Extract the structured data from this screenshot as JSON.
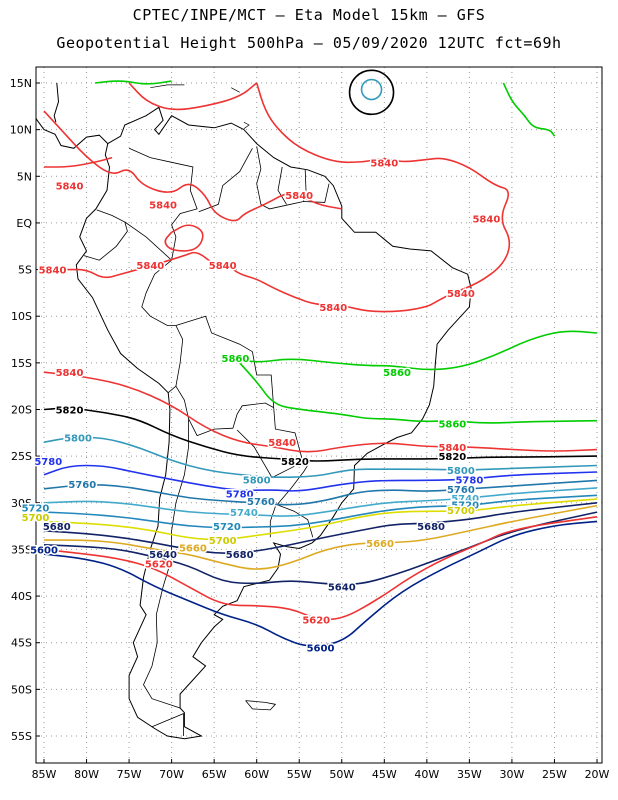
{
  "header": {
    "line1": "CPTEC/INPE/MCT –  Eta Model 15km – GFS",
    "line2": "Geopotential Height 500hPa – 05/09/2020 12UTC fct=69h"
  },
  "map": {
    "lat_ticks": [
      "15N",
      "10N",
      "5N",
      "EQ",
      "5S",
      "10S",
      "15S",
      "20S",
      "25S",
      "30S",
      "35S",
      "40S",
      "45S",
      "50S",
      "55S"
    ],
    "lon_ticks": [
      "85W",
      "80W",
      "75W",
      "70W",
      "65W",
      "60W",
      "55W",
      "50W",
      "45W",
      "40W",
      "35W",
      "30W",
      "25W",
      "20W"
    ],
    "grid": "dotted",
    "contour_colors": {
      "5860": "#00cc00",
      "5840": "#ee3333",
      "5820": "#000000",
      "5800": "#3399bb",
      "5780": "#2233ee",
      "5760": "#2277aa",
      "5740": "#44aacc",
      "5720": "#2288bb",
      "5700": "#eeee00",
      "5680": "#112266",
      "5660": "#ddaa22",
      "5640": "#112266",
      "5620": "#ee3333",
      "5600": "#002288"
    },
    "contour_labels": [
      {
        "text": "5840",
        "color": "#ee3333",
        "lon": -51,
        "lat": -9
      },
      {
        "text": "5840",
        "color": "#ee3333",
        "lon": -72.5,
        "lat": -4.5
      },
      {
        "text": "5840",
        "color": "#ee3333",
        "lon": -84,
        "lat": -5
      },
      {
        "text": "5840",
        "color": "#ee3333",
        "lon": -64,
        "lat": -4.5
      },
      {
        "text": "5840",
        "color": "#ee3333",
        "lon": -82,
        "lat": 4
      },
      {
        "text": "5840",
        "color": "#ee3333",
        "lon": -45,
        "lat": 6.5
      },
      {
        "text": "5840",
        "color": "#ee3333",
        "lon": -71,
        "lat": 2
      },
      {
        "text": "5840",
        "color": "#ee3333",
        "lon": -55,
        "lat": 3
      },
      {
        "text": "5840",
        "color": "#ee3333",
        "lon": -33,
        "lat": 0.5
      },
      {
        "text": "5840",
        "color": "#ee3333",
        "lon": -36,
        "lat": -7.5
      },
      {
        "text": "5840",
        "color": "#ee3333",
        "lon": -82,
        "lat": -16
      },
      {
        "text": "5840",
        "color": "#ee3333",
        "lon": -57,
        "lat": -23.5
      },
      {
        "text": "5840",
        "color": "#ee3333",
        "lon": -37,
        "lat": -24
      },
      {
        "text": "5860",
        "color": "#00cc00",
        "lon": -62.5,
        "lat": -14.5
      },
      {
        "text": "5860",
        "color": "#00cc00",
        "lon": -43.5,
        "lat": -16
      },
      {
        "text": "5860",
        "color": "#00cc00",
        "lon": -37,
        "lat": -21.5
      },
      {
        "text": "5820",
        "color": "#000000",
        "lon": -82,
        "lat": -20
      },
      {
        "text": "5820",
        "color": "#000000",
        "lon": -55.5,
        "lat": -25.5
      },
      {
        "text": "5820",
        "color": "#000000",
        "lon": -37,
        "lat": -25
      },
      {
        "text": "5800",
        "color": "#3399bb",
        "lon": -81,
        "lat": -23
      },
      {
        "text": "5800",
        "color": "#3399bb",
        "lon": -60,
        "lat": -27.5
      },
      {
        "text": "5800",
        "color": "#3399bb",
        "lon": -36,
        "lat": -26.5
      },
      {
        "text": "5780",
        "color": "#2233ee",
        "lon": -84.5,
        "lat": -25.5
      },
      {
        "text": "5780",
        "color": "#2233ee",
        "lon": -62,
        "lat": -29
      },
      {
        "text": "5780",
        "color": "#2233ee",
        "lon": -35,
        "lat": -27.5
      },
      {
        "text": "5760",
        "color": "#2277aa",
        "lon": -80.5,
        "lat": -28
      },
      {
        "text": "5760",
        "color": "#2277aa",
        "lon": -59.5,
        "lat": -29.8
      },
      {
        "text": "5760",
        "color": "#2277aa",
        "lon": -36,
        "lat": -28.5
      },
      {
        "text": "5740",
        "color": "#44aacc",
        "lon": -61.5,
        "lat": -31
      },
      {
        "text": "5740",
        "color": "#44aacc",
        "lon": -35.5,
        "lat": -29.5
      },
      {
        "text": "5720",
        "color": "#2288bb",
        "lon": -86,
        "lat": -30.5
      },
      {
        "text": "5720",
        "color": "#2288bb",
        "lon": -63.5,
        "lat": -32.5
      },
      {
        "text": "5720",
        "color": "#2288bb",
        "lon": -35.5,
        "lat": -30.2
      },
      {
        "text": "5700",
        "color": "#cccc00",
        "lon": -86,
        "lat": -31.5
      },
      {
        "text": "5700",
        "color": "#cccc00",
        "lon": -64,
        "lat": -34
      },
      {
        "text": "5700",
        "color": "#cccc00",
        "lon": -36,
        "lat": -30.8
      },
      {
        "text": "5680",
        "color": "#112266",
        "lon": -83.5,
        "lat": -32.5
      },
      {
        "text": "5680",
        "color": "#112266",
        "lon": -62,
        "lat": -35.5
      },
      {
        "text": "5680",
        "color": "#112266",
        "lon": -39.5,
        "lat": -32.5
      },
      {
        "text": "5660",
        "color": "#ddaa22",
        "lon": -67.5,
        "lat": -34.8
      },
      {
        "text": "5660",
        "color": "#ddaa22",
        "lon": -45.5,
        "lat": -34.3
      },
      {
        "text": "5640",
        "color": "#112266",
        "lon": -71,
        "lat": -35.5
      },
      {
        "text": "5640",
        "color": "#112266",
        "lon": -50,
        "lat": -39
      },
      {
        "text": "5620",
        "color": "#ee3333",
        "lon": -71.5,
        "lat": -36.5
      },
      {
        "text": "5620",
        "color": "#ee3333",
        "lon": -53,
        "lat": -42.5
      },
      {
        "text": "5600",
        "color": "#002288",
        "lon": -85,
        "lat": -35
      },
      {
        "text": "5600",
        "color": "#002288",
        "lon": -52.5,
        "lat": -45.5
      }
    ]
  }
}
